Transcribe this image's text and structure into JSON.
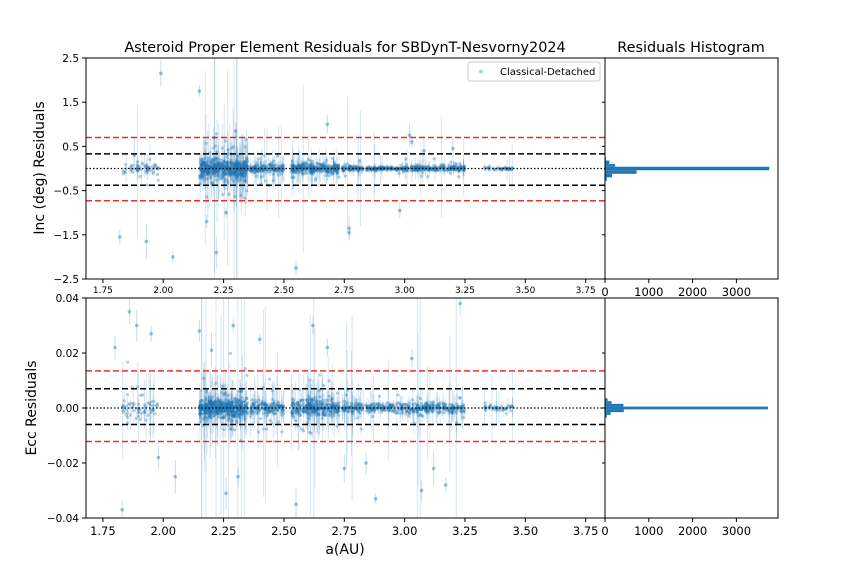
{
  "colors": {
    "scatter": "#1f77b4",
    "red_dash": "#e8302a",
    "black_dash": "#000000",
    "axis": "#000000"
  },
  "chart_data": [
    {
      "type": "scatter",
      "panel": "inc-main",
      "title": "Asteroid Proper Element Residuals for SBDynT-Nesvorny2024",
      "ylabel": "Inc (deg) Residuals",
      "xlabel": "",
      "xlim": [
        1.68,
        3.83
      ],
      "ylim": [
        -2.5,
        2.5
      ],
      "xticks": [
        "1.75",
        "2.00",
        "2.25",
        "2.50",
        "2.75",
        "3.00",
        "3.25",
        "3.50",
        "3.75"
      ],
      "yticks": [
        "2.5",
        "1.5",
        "0.5",
        "−0.5",
        "−1.5",
        "−2.5"
      ],
      "ytick_values": [
        2.5,
        1.5,
        0.5,
        -0.5,
        -1.5,
        -2.5
      ],
      "legend": {
        "label": "Classical-Detached",
        "placement": "upper-right"
      },
      "hlines": [
        {
          "y": 0.7,
          "style": "red-dashed"
        },
        {
          "y": 0.33,
          "style": "black-dashed"
        },
        {
          "y": 0.0,
          "style": "black-dotted"
        },
        {
          "y": -0.38,
          "style": "black-dashed"
        },
        {
          "y": -0.73,
          "style": "red-dashed"
        }
      ],
      "clusters": [
        {
          "x": [
            1.83,
            1.98
          ],
          "sd": 0.06,
          "n": 60
        },
        {
          "x": [
            2.15,
            2.35
          ],
          "sd": 0.1,
          "n": 520
        },
        {
          "x": [
            2.36,
            2.5
          ],
          "sd": 0.05,
          "n": 160
        },
        {
          "x": [
            2.53,
            2.73
          ],
          "sd": 0.05,
          "n": 300
        },
        {
          "x": [
            2.74,
            2.83
          ],
          "sd": 0.03,
          "n": 80
        },
        {
          "x": [
            2.84,
            3.0
          ],
          "sd": 0.02,
          "n": 130
        },
        {
          "x": [
            3.0,
            3.25
          ],
          "sd": 0.03,
          "n": 220
        },
        {
          "x": [
            3.33,
            3.45
          ],
          "sd": 0.015,
          "n": 40
        }
      ],
      "outliers": [
        [
          1.82,
          -1.55
        ],
        [
          1.93,
          -1.65
        ],
        [
          1.99,
          2.15
        ],
        [
          2.04,
          -2.0
        ],
        [
          2.15,
          1.75
        ],
        [
          2.18,
          -1.2
        ],
        [
          2.22,
          -1.9
        ],
        [
          2.55,
          -2.25
        ],
        [
          2.68,
          1.0
        ],
        [
          2.77,
          -1.45
        ],
        [
          2.77,
          -1.35
        ],
        [
          2.98,
          -0.95
        ],
        [
          3.02,
          0.75
        ],
        [
          3.03,
          0.6
        ],
        [
          2.3,
          0.85
        ],
        [
          2.26,
          -1.0
        ],
        [
          2.21,
          0.7
        ],
        [
          1.88,
          0.3
        ],
        [
          3.08,
          0.4
        ],
        [
          3.2,
          0.45
        ]
      ]
    },
    {
      "type": "bar",
      "panel": "inc-hist",
      "title": "Residuals Histogram",
      "orientation": "horizontal",
      "xticks": [
        "0",
        "1000",
        "2000",
        "3000"
      ],
      "xtick_values": [
        0,
        1000,
        2000,
        3000
      ],
      "xlim": [
        0,
        3950
      ],
      "ylim": [
        -2.5,
        2.5
      ],
      "bins": [
        {
          "y0": 0.26,
          "y1": 0.18,
          "count": 20
        },
        {
          "y0": 0.18,
          "y1": 0.1,
          "count": 100
        },
        {
          "y0": 0.1,
          "y1": 0.04,
          "count": 230
        },
        {
          "y0": 0.04,
          "y1": -0.04,
          "count": 3750
        },
        {
          "y0": -0.04,
          "y1": -0.12,
          "count": 720
        },
        {
          "y0": -0.12,
          "y1": -0.2,
          "count": 160
        },
        {
          "y0": -0.2,
          "y1": -0.28,
          "count": 40
        }
      ]
    },
    {
      "type": "scatter",
      "panel": "ecc-main",
      "title": "",
      "ylabel": "Ecc Residuals",
      "xlabel": "a(AU)",
      "xlim": [
        1.68,
        3.83
      ],
      "ylim": [
        -0.04,
        0.04
      ],
      "xticks": [
        "1.75",
        "2.00",
        "2.25",
        "2.50",
        "2.75",
        "3.00",
        "3.25",
        "3.50",
        "3.75"
      ],
      "xtick_values": [
        1.75,
        2.0,
        2.25,
        2.5,
        2.75,
        3.0,
        3.25,
        3.5,
        3.75
      ],
      "yticks": [
        "0.04",
        "0.02",
        "0.00",
        "−0.02",
        "−0.04"
      ],
      "ytick_values": [
        0.04,
        0.02,
        0.0,
        -0.02,
        -0.04
      ],
      "hlines": [
        {
          "y": 0.0135,
          "style": "red-dashed"
        },
        {
          "y": 0.007,
          "style": "black-dashed"
        },
        {
          "y": 0.0,
          "style": "black-dotted"
        },
        {
          "y": -0.006,
          "style": "black-dashed"
        },
        {
          "y": -0.0122,
          "style": "red-dashed"
        }
      ],
      "clusters": [
        {
          "x": [
            1.83,
            1.98
          ],
          "sd": 0.002,
          "n": 60
        },
        {
          "x": [
            2.15,
            2.35
          ],
          "sd": 0.0015,
          "n": 520
        },
        {
          "x": [
            2.36,
            2.5
          ],
          "sd": 0.0012,
          "n": 160
        },
        {
          "x": [
            2.53,
            2.73
          ],
          "sd": 0.0015,
          "n": 300
        },
        {
          "x": [
            2.74,
            2.83
          ],
          "sd": 0.001,
          "n": 80
        },
        {
          "x": [
            2.84,
            3.0
          ],
          "sd": 0.0008,
          "n": 130
        },
        {
          "x": [
            3.0,
            3.25
          ],
          "sd": 0.001,
          "n": 220
        },
        {
          "x": [
            3.33,
            3.45
          ],
          "sd": 0.0006,
          "n": 40
        }
      ],
      "outliers": [
        [
          1.8,
          0.022
        ],
        [
          1.83,
          -0.037
        ],
        [
          1.86,
          0.035
        ],
        [
          1.89,
          0.03
        ],
        [
          1.95,
          0.027
        ],
        [
          2.05,
          -0.025
        ],
        [
          2.15,
          0.028
        ],
        [
          2.2,
          0.021
        ],
        [
          2.26,
          -0.031
        ],
        [
          2.29,
          0.03
        ],
        [
          2.31,
          -0.025
        ],
        [
          2.4,
          0.025
        ],
        [
          2.55,
          -0.035
        ],
        [
          2.62,
          0.03
        ],
        [
          2.68,
          0.022
        ],
        [
          2.75,
          -0.022
        ],
        [
          2.84,
          -0.02
        ],
        [
          2.88,
          -0.033
        ],
        [
          3.03,
          0.018
        ],
        [
          3.07,
          -0.03
        ],
        [
          3.12,
          -0.022
        ],
        [
          3.17,
          -0.028
        ],
        [
          3.23,
          0.038
        ],
        [
          3.38,
          0.0
        ],
        [
          1.98,
          -0.018
        ]
      ]
    },
    {
      "type": "bar",
      "panel": "ecc-hist",
      "title": "",
      "orientation": "horizontal",
      "xticks": [
        "0",
        "1000",
        "2000",
        "3000"
      ],
      "xtick_values": [
        0,
        1000,
        2000,
        3000
      ],
      "xlim": [
        0,
        3950
      ],
      "ylim": [
        -0.04,
        0.04
      ],
      "bins": [
        {
          "y0": 0.0035,
          "y1": 0.0025,
          "count": 60
        },
        {
          "y0": 0.0025,
          "y1": 0.0015,
          "count": 150
        },
        {
          "y0": 0.0015,
          "y1": 0.0005,
          "count": 420
        },
        {
          "y0": 0.0005,
          "y1": -0.0005,
          "count": 3720
        },
        {
          "y0": -0.0005,
          "y1": -0.0015,
          "count": 430
        },
        {
          "y0": -0.0015,
          "y1": -0.0025,
          "count": 130
        },
        {
          "y0": -0.0025,
          "y1": -0.0035,
          "count": 40
        }
      ]
    }
  ]
}
